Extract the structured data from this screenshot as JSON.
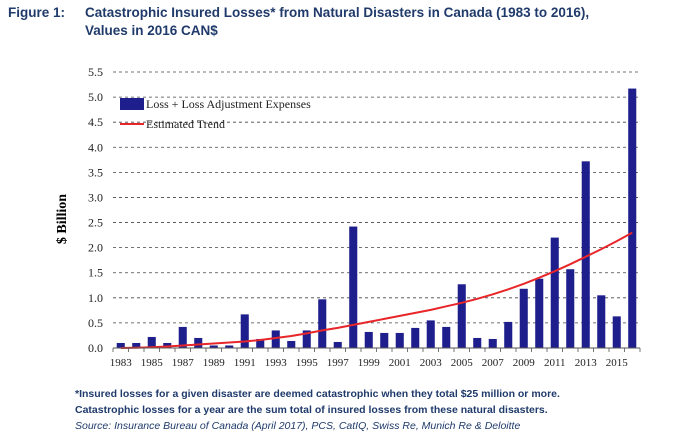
{
  "figure": {
    "label": "Figure 1:",
    "title_line1": "Catastrophic Insured Losses* from Natural Disasters in Canada (1983 to 2016),",
    "title_line2": "Values in 2016 CAN$"
  },
  "chart_data": {
    "type": "bar",
    "ylabel": "$ Billion",
    "xlabel": "",
    "ylim": [
      0,
      5.5
    ],
    "yticks": [
      "0.0",
      "0.5",
      "1.0",
      "1.5",
      "2.0",
      "2.5",
      "3.0",
      "3.5",
      "4.0",
      "4.5",
      "5.0",
      "5.5"
    ],
    "xtick_labels": [
      "1983",
      "1985",
      "1987",
      "1989",
      "1991",
      "1993",
      "1995",
      "1997",
      "1999",
      "2001",
      "2003",
      "2005",
      "2007",
      "2009",
      "2011",
      "2013",
      "2015"
    ],
    "grid": "horizontal dashed",
    "legend_position": "top-left",
    "categories": [
      "1983",
      "1984",
      "1985",
      "1986",
      "1987",
      "1988",
      "1989",
      "1990",
      "1991",
      "1992",
      "1993",
      "1994",
      "1995",
      "1996",
      "1997",
      "1998",
      "1999",
      "2000",
      "2001",
      "2002",
      "2003",
      "2004",
      "2005",
      "2006",
      "2007",
      "2008",
      "2009",
      "2010",
      "2011",
      "2012",
      "2013",
      "2014",
      "2015",
      "2016"
    ],
    "series": [
      {
        "name": "Loss + Loss Adjustment Expenses",
        "type": "bar",
        "color": "#1e1e8c",
        "values": [
          0.1,
          0.1,
          0.22,
          0.1,
          0.42,
          0.2,
          0.05,
          0.05,
          0.67,
          0.18,
          0.35,
          0.14,
          0.35,
          0.97,
          0.12,
          2.42,
          0.32,
          0.3,
          0.3,
          0.4,
          0.55,
          0.42,
          1.27,
          0.2,
          0.18,
          0.52,
          1.18,
          1.38,
          2.2,
          1.57,
          3.72,
          1.05,
          0.63,
          5.17
        ]
      },
      {
        "name": "Estimated Trend",
        "type": "line",
        "color": "#e8262a",
        "values": [
          0.0,
          0.004,
          0.014,
          0.03,
          0.05,
          0.07,
          0.09,
          0.11,
          0.13,
          0.16,
          0.2,
          0.24,
          0.29,
          0.35,
          0.4,
          0.46,
          0.52,
          0.58,
          0.64,
          0.7,
          0.76,
          0.83,
          0.9,
          0.98,
          1.07,
          1.17,
          1.28,
          1.4,
          1.53,
          1.67,
          1.82,
          1.97,
          2.13,
          2.3
        ]
      }
    ]
  },
  "footnotes": {
    "note1": "*Insured losses for a given disaster are deemed catastrophic when they total $25 million or more.",
    "note2": "Catastrophic losses for a year are the sum total of insured losses from these natural disasters.",
    "source": "Source: Insurance Bureau of Canada (April 2017), PCS, CatIQ, Swiss Re, Munich Re & Deloitte"
  }
}
